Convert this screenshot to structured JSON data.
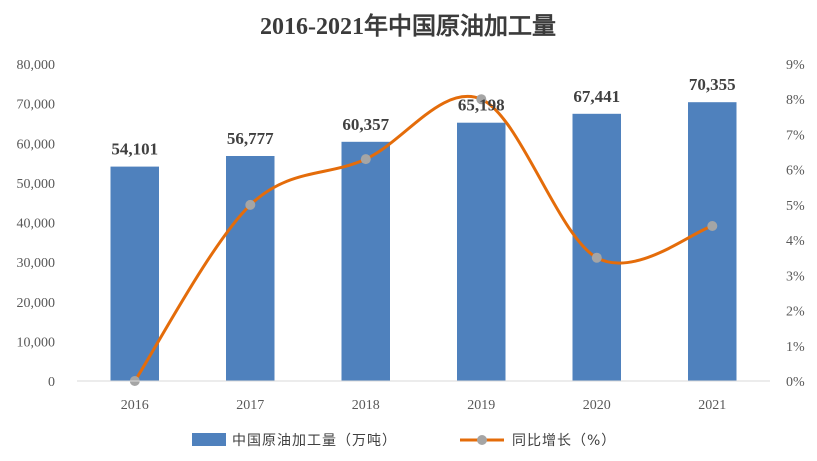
{
  "chart_data": {
    "type": "bar",
    "title": "2016-2021年中国原油加工量",
    "categories": [
      "2016",
      "2017",
      "2018",
      "2019",
      "2020",
      "2021"
    ],
    "series": [
      {
        "name": "中国原油加工量（万吨）",
        "type": "bar",
        "axis": "left",
        "values": [
          54101,
          56777,
          60357,
          65198,
          67441,
          70355
        ],
        "data_labels": [
          "54,101",
          "56,777",
          "60,357",
          "65,198",
          "67,441",
          "70,355"
        ],
        "color": "#4F81BD"
      },
      {
        "name": "同比增长（%）",
        "type": "line",
        "axis": "right",
        "smooth": true,
        "values": [
          0.0,
          5.0,
          6.3,
          8.0,
          3.5,
          4.4
        ],
        "color": "#E46C0A",
        "marker_color": "#A5A5A5"
      }
    ],
    "y_left": {
      "min": 0,
      "max": 80000,
      "ticks": [
        "0",
        "10,000",
        "20,000",
        "30,000",
        "40,000",
        "50,000",
        "60,000",
        "70,000",
        "80,000"
      ]
    },
    "y_right": {
      "min": 0,
      "max": 9,
      "ticks": [
        "0%",
        "1%",
        "2%",
        "3%",
        "4%",
        "5%",
        "6%",
        "7%",
        "8%",
        "9%"
      ]
    },
    "grid": false,
    "legend_position": "bottom"
  }
}
